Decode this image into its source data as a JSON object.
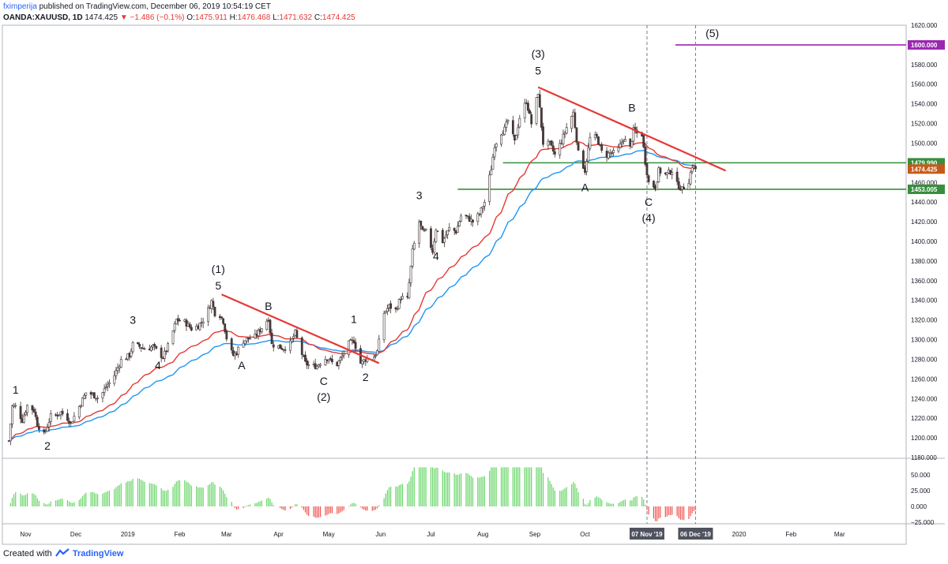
{
  "header": {
    "author": "fximperija",
    "published": "published on TradingView.com, December 06, 2019 10:54:19 CET",
    "symbol": "OANDA:XAUUSD, 1D",
    "last": "1474.425",
    "change": "−1.486 (−0.1%)",
    "o_label": "O:",
    "o_val": "1475.911",
    "h_label": "H:",
    "h_val": "1476.468",
    "l_label": "L:",
    "l_val": "1471.632",
    "c_label": "C:",
    "c_val": "1474.425"
  },
  "footer": {
    "created_with": "Created with",
    "brand": "TradingView"
  },
  "chart_data": {
    "type": "candlestick",
    "price_axis": {
      "min": 1180,
      "max": 1620,
      "step": 20,
      "ticks": [
        "1180.000",
        "1200.000",
        "1220.000",
        "1240.000",
        "1260.000",
        "1280.000",
        "1300.000",
        "1320.000",
        "1340.000",
        "1360.000",
        "1380.000",
        "1400.000",
        "1420.000",
        "1440.000",
        "1460.000",
        "1480.000",
        "1500.000",
        "1520.000",
        "1540.000",
        "1560.000",
        "1580.000",
        "1600.000",
        "1620.000"
      ]
    },
    "oscillator_axis": {
      "min": -25,
      "max": 50,
      "ticks": [
        "50.000",
        "25.000",
        "0.000",
        "−25.000"
      ]
    },
    "x_axis": {
      "ticks": [
        "Nov",
        "Dec",
        "2019",
        "Feb",
        "Mar",
        "Apr",
        "May",
        "Jun",
        "Jul",
        "Aug",
        "Sep",
        "Oct",
        "2020",
        "Feb",
        "Mar"
      ],
      "vertical_markers": [
        {
          "label": "07 Nov '19"
        },
        {
          "label": "06 Dec '19"
        }
      ]
    },
    "price_tags": [
      {
        "value": 1600.0,
        "label": "1600.000",
        "color": "#9c27b0"
      },
      {
        "value": 1479.99,
        "label": "1479.990",
        "color": "#388e3c"
      },
      {
        "value": 1474.425,
        "label": "1474.425",
        "color": "#c45a1a"
      },
      {
        "value": 1453.005,
        "label": "1453.005",
        "color": "#388e3c"
      }
    ],
    "horizontal_levels": [
      {
        "value": 1600.0,
        "color": "#9c27b0"
      },
      {
        "value": 1479.99,
        "color": "#388e3c"
      },
      {
        "value": 1453.005,
        "color": "#388e3c"
      }
    ],
    "trendlines": [
      {
        "from": [
          1346,
          "Feb 26"
        ],
        "to": [
          1276,
          "May 31"
        ],
        "color": "#e53935"
      },
      {
        "from": [
          1557,
          "Sep 3"
        ],
        "to": [
          1472,
          "Dec 24"
        ],
        "color": "#e53935"
      }
    ],
    "series": [
      {
        "kind": "price_path",
        "points": [
          [
            "Oct 22",
            1197
          ],
          [
            "Oct 24",
            1232
          ],
          [
            "Oct 26",
            1232
          ],
          [
            "Oct 30",
            1218
          ],
          [
            "Nov 2",
            1233
          ],
          [
            "Nov 6",
            1228
          ],
          [
            "Nov 8",
            1214
          ],
          [
            "Nov 12",
            1203
          ],
          [
            "Nov 14",
            1212
          ],
          [
            "Nov 16",
            1222
          ],
          [
            "Nov 19",
            1223
          ],
          [
            "Nov 22",
            1226
          ],
          [
            "Nov 26",
            1220
          ],
          [
            "Nov 28",
            1215
          ],
          [
            "Dec 3",
            1232
          ],
          [
            "Dec 7",
            1246
          ],
          [
            "Dec 11",
            1244
          ],
          [
            "Dec 15",
            1240
          ],
          [
            "Dec 19",
            1252
          ],
          [
            "Dec 23",
            1260
          ],
          [
            "Dec 28",
            1279
          ],
          [
            "Jan 2",
            1284
          ],
          [
            "Jan 4",
            1295
          ],
          [
            "Jan 8",
            1293
          ],
          [
            "Jan 12",
            1290
          ],
          [
            "Jan 16",
            1293
          ],
          [
            "Jan 22",
            1282
          ],
          [
            "Jan 26",
            1297
          ],
          [
            "Jan 30",
            1320
          ],
          [
            "Feb 4",
            1318
          ],
          [
            "Feb 8",
            1311
          ],
          [
            "Feb 12",
            1314
          ],
          [
            "Feb 16",
            1322
          ],
          [
            "Feb 20",
            1339
          ],
          [
            "Feb 22",
            1327
          ],
          [
            "Feb 24",
            1328
          ],
          [
            "Feb 27",
            1319
          ],
          [
            "Mar 2",
            1293
          ],
          [
            "Mar 5",
            1284
          ],
          [
            "Mar 7",
            1287
          ],
          [
            "Mar 10",
            1298
          ],
          [
            "Mar 14",
            1301
          ],
          [
            "Mar 18",
            1303
          ],
          [
            "Mar 22",
            1312
          ],
          [
            "Mar 26",
            1322
          ],
          [
            "Mar 28",
            1295
          ],
          [
            "Apr 1",
            1293
          ],
          [
            "Apr 4",
            1291
          ],
          [
            "Apr 8",
            1296
          ],
          [
            "Apr 11",
            1307
          ],
          [
            "Apr 14",
            1290
          ],
          [
            "Apr 17",
            1276
          ],
          [
            "Apr 20",
            1273
          ],
          [
            "Apr 24",
            1273
          ],
          [
            "Apr 28",
            1281
          ],
          [
            "May 1",
            1281
          ],
          [
            "May 5",
            1272
          ],
          [
            "May 9",
            1283
          ],
          [
            "May 13",
            1296
          ],
          [
            "May 16",
            1299
          ],
          [
            "May 20",
            1276
          ],
          [
            "May 23",
            1280
          ],
          [
            "May 27",
            1280
          ],
          [
            "May 30",
            1288
          ],
          [
            "Jun 3",
            1327
          ],
          [
            "Jun 6",
            1334
          ],
          [
            "Jun 10",
            1330
          ],
          [
            "Jun 13",
            1343
          ],
          [
            "Jun 17",
            1341
          ],
          [
            "Jun 20",
            1390
          ],
          [
            "Jun 24",
            1420
          ],
          [
            "Jun 26",
            1409
          ],
          [
            "Jun 28",
            1410
          ],
          [
            "Jul 2",
            1390
          ],
          [
            "Jul 4",
            1413
          ],
          [
            "Jul 8",
            1400
          ],
          [
            "Jul 12",
            1413
          ],
          [
            "Jul 16",
            1410
          ],
          [
            "Jul 19",
            1426
          ],
          [
            "Jul 22",
            1425
          ],
          [
            "Jul 26",
            1420
          ],
          [
            "Jul 30",
            1428
          ],
          [
            "Aug 2",
            1440
          ],
          [
            "Aug 6",
            1474
          ],
          [
            "Aug 8",
            1498
          ],
          [
            "Aug 12",
            1511
          ],
          [
            "Aug 14",
            1514
          ],
          [
            "Aug 16",
            1523
          ],
          [
            "Aug 20",
            1501
          ],
          [
            "Aug 23",
            1526
          ],
          [
            "Aug 27",
            1543
          ],
          [
            "Aug 30",
            1520
          ],
          [
            "Sep 3",
            1552
          ],
          [
            "Sep 6",
            1500
          ],
          [
            "Sep 10",
            1499
          ],
          [
            "Sep 13",
            1488
          ],
          [
            "Sep 17",
            1502
          ],
          [
            "Sep 20",
            1516
          ],
          [
            "Sep 24",
            1531
          ],
          [
            "Sep 27",
            1490
          ],
          [
            "Oct 1",
            1472
          ],
          [
            "Oct 4",
            1505
          ],
          [
            "Oct 8",
            1506
          ],
          [
            "Oct 12",
            1486
          ],
          [
            "Oct 16",
            1490
          ],
          [
            "Oct 20",
            1490
          ],
          [
            "Oct 24",
            1505
          ],
          [
            "Oct 28",
            1495
          ],
          [
            "Oct 30",
            1513
          ],
          [
            "Nov 1",
            1510
          ],
          [
            "Nov 4",
            1509
          ],
          [
            "Nov 6",
            1481
          ],
          [
            "Nov 8",
            1460
          ],
          [
            "Nov 12",
            1455
          ],
          [
            "Nov 14",
            1472
          ],
          [
            "Nov 18",
            1468
          ],
          [
            "Nov 22",
            1472
          ],
          [
            "Nov 25",
            1458
          ],
          [
            "Nov 28",
            1453
          ],
          [
            "Dec 2",
            1462
          ],
          [
            "Dec 4",
            1477
          ],
          [
            "Dec 6",
            1474
          ]
        ]
      },
      {
        "kind": "moving_average",
        "color": "#e53935"
      },
      {
        "kind": "moving_average",
        "color": "#2196f3"
      },
      {
        "kind": "histogram",
        "color_positive": "#66d466",
        "color_negative": "#ef5350"
      }
    ],
    "annotations": [
      {
        "text": "1",
        "date": "Oct 26",
        "price": 1245
      },
      {
        "text": "2",
        "date": "Nov 14",
        "price": 1188
      },
      {
        "text": "3",
        "date": "Jan 4",
        "price": 1316
      },
      {
        "text": "4",
        "date": "Jan 19",
        "price": 1270
      },
      {
        "text": "(1)",
        "date": "Feb 24",
        "price": 1368
      },
      {
        "text": "5",
        "date": "Feb 24",
        "price": 1351
      },
      {
        "text": "A",
        "date": "Mar 10",
        "price": 1270
      },
      {
        "text": "B",
        "date": "Mar 26",
        "price": 1330
      },
      {
        "text": "C",
        "date": "Apr 28",
        "price": 1254
      },
      {
        "text": "(2)",
        "date": "Apr 28",
        "price": 1238
      },
      {
        "text": "1",
        "date": "May 16",
        "price": 1317
      },
      {
        "text": "2",
        "date": "May 23",
        "price": 1258
      },
      {
        "text": "3",
        "date": "Jun 24",
        "price": 1443
      },
      {
        "text": "4",
        "date": "Jul 4",
        "price": 1381
      },
      {
        "text": "(3)",
        "date": "Sep 3",
        "price": 1587
      },
      {
        "text": "5",
        "date": "Sep 3",
        "price": 1570
      },
      {
        "text": "B",
        "date": "Oct 29",
        "price": 1532
      },
      {
        "text": "A",
        "date": "Oct 1",
        "price": 1451
      },
      {
        "text": "C",
        "date": "Nov 8",
        "price": 1436
      },
      {
        "text": "(4)",
        "date": "Nov 8",
        "price": 1420
      },
      {
        "text": "(5)",
        "date": "Dec 16",
        "price": 1608
      }
    ]
  }
}
